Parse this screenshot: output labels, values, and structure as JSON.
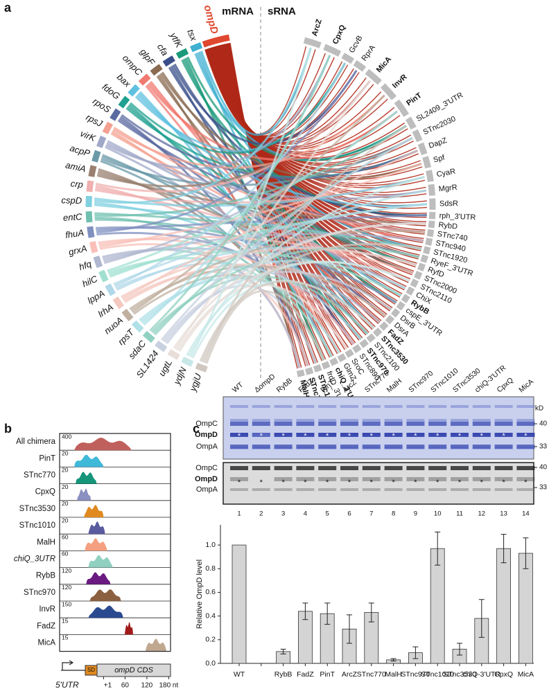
{
  "panel_labels": {
    "a": "a",
    "b": "b",
    "c": "c"
  },
  "chord": {
    "left_title": "mRNA",
    "right_title": "sRNA",
    "mrnas": [
      {
        "label": "ompD",
        "color": "#e0472f"
      },
      {
        "label": "tsx",
        "color": "#40b0d0"
      },
      {
        "label": "ytfK",
        "color": "#1a9a7a"
      },
      {
        "label": "cfa",
        "color": "#3a4f8a"
      },
      {
        "label": "glpF",
        "color": "#8a6a50"
      },
      {
        "label": "ompC",
        "color": "#f07a70"
      },
      {
        "label": "bax",
        "color": "#60c0e0"
      },
      {
        "label": "fdoG",
        "color": "#20a090"
      },
      {
        "label": "rpoS",
        "color": "#5a6aa0"
      },
      {
        "label": "rpsJ",
        "color": "#f4a090"
      },
      {
        "label": "virK",
        "color": "#a0a8c8"
      },
      {
        "label": "acpP",
        "color": "#6a9aa8"
      },
      {
        "label": "amiA",
        "color": "#9a8070"
      },
      {
        "label": "crp",
        "color": "#f0b0b0"
      },
      {
        "label": "cspD",
        "color": "#80d0e0"
      },
      {
        "label": "entC",
        "color": "#70c0b0"
      },
      {
        "label": "fhuA",
        "color": "#8090c0"
      },
      {
        "label": "grxA",
        "color": "#f8c0b8"
      },
      {
        "label": "hfq",
        "color": "#b0b8d0"
      },
      {
        "label": "hilC",
        "color": "#a0e0d0"
      },
      {
        "label": "lppA",
        "color": "#b0d8e8"
      },
      {
        "label": "lrhA",
        "color": "#f4c8c0"
      },
      {
        "label": "nuoA",
        "color": "#c0b0a0"
      },
      {
        "label": "rpsT",
        "color": "#b0e0e8"
      },
      {
        "label": "sdaC",
        "color": "#90d0c0"
      },
      {
        "label": "SL1424",
        "color": "#c8d0e0"
      },
      {
        "label": "ugtL",
        "color": "#e8ddd8"
      },
      {
        "label": "ydjN",
        "color": "#c8e8e8"
      },
      {
        "label": "ygjU",
        "color": "#d0c8c0"
      }
    ],
    "srnas": [
      {
        "label": "ArcZ",
        "bold": true
      },
      {
        "label": "CpxQ",
        "bold": true
      },
      {
        "label": "GcvB",
        "bold": false
      },
      {
        "label": "RprA",
        "bold": false
      },
      {
        "label": "MicA",
        "bold": true
      },
      {
        "label": "InvR",
        "bold": true
      },
      {
        "label": "PinT",
        "bold": true
      },
      {
        "label": "SL2409_3'UTR",
        "bold": false
      },
      {
        "label": "STnc2030",
        "bold": false
      },
      {
        "label": "DapZ",
        "bold": false
      },
      {
        "label": "Spf",
        "bold": false
      },
      {
        "label": "CyaR",
        "bold": false
      },
      {
        "label": "MgrR",
        "bold": false
      },
      {
        "label": "SdsR",
        "bold": false
      },
      {
        "label": "rph_3'UTR",
        "bold": false
      },
      {
        "label": "RybD",
        "bold": false
      },
      {
        "label": "STnc740",
        "bold": false
      },
      {
        "label": "STnc940",
        "bold": false
      },
      {
        "label": "STnc1920",
        "bold": false
      },
      {
        "label": "RyeF_3'UTR",
        "bold": false
      },
      {
        "label": "RyfD",
        "bold": false
      },
      {
        "label": "STnc2000",
        "bold": false
      },
      {
        "label": "STnc2110",
        "bold": false
      },
      {
        "label": "ChiX",
        "bold": false
      },
      {
        "label": "RybB",
        "bold": true
      },
      {
        "label": "cspE_3'UTR",
        "bold": false
      },
      {
        "label": "DsrB",
        "bold": false
      },
      {
        "label": "DsrA",
        "bold": false
      },
      {
        "label": "FadZ",
        "bold": true
      },
      {
        "label": "STnc3530",
        "bold": true
      },
      {
        "label": "STnc2100",
        "bold": false
      },
      {
        "label": "STnc970",
        "bold": true
      },
      {
        "label": "STnc890",
        "bold": false
      },
      {
        "label": "SroC",
        "bold": false
      },
      {
        "label": "GlmZ",
        "bold": false
      },
      {
        "label": "chiQ_3'UTR",
        "bold": true
      },
      {
        "label": "frdD_3'UTR",
        "bold": false
      },
      {
        "label": "STnc1010",
        "bold": true
      },
      {
        "label": "STnc770",
        "bold": true
      },
      {
        "label": "MalH",
        "bold": true
      }
    ]
  },
  "coverage": {
    "xlim": [
      -120,
      185
    ],
    "ticks": [
      {
        "value": 1,
        "label": "+1"
      },
      60,
      120,
      {
        "value": 180,
        "label": "180 nt"
      }
    ],
    "utr_label": "5'UTR",
    "sd_label": "SD",
    "cds_label": "ompD CDS",
    "tracks": [
      {
        "name": "All chimera",
        "max": 400,
        "color": "#c0605c",
        "span": [
          -80,
          78
        ]
      },
      {
        "name": "PinT",
        "max": 20,
        "color": "#40b8d8",
        "span": [
          -80,
          1
        ]
      },
      {
        "name": "STnc770",
        "max": 20,
        "color": "#15957a",
        "span": [
          -76,
          -18
        ]
      },
      {
        "name": "CpxQ",
        "max": 20,
        "color": "#8a90c0",
        "span": [
          -72,
          -34
        ]
      },
      {
        "name": "STnc3530",
        "max": 20,
        "color": "#e08a20",
        "span": [
          -53,
          1
        ]
      },
      {
        "name": "STnc1010",
        "max": 20,
        "color": "#5a5aa0",
        "span": [
          -41,
          5
        ]
      },
      {
        "name": "MalH",
        "max": 60,
        "color": "#f4a080",
        "span": [
          -51,
          11
        ]
      },
      {
        "name": "chiQ_3UTR",
        "max": 60,
        "color": "#90d0c0",
        "span": [
          -41,
          26
        ],
        "italic": true
      },
      {
        "name": "RybB",
        "max": 120,
        "color": "#6a1a80",
        "span": [
          -47,
          20
        ]
      },
      {
        "name": "STnc970",
        "max": 120,
        "color": "#8a6040",
        "span": [
          -37,
          49
        ]
      },
      {
        "name": "InvR",
        "max": 150,
        "color": "#2a4a90",
        "span": [
          -41,
          55
        ]
      },
      {
        "name": "FadZ",
        "max": 15,
        "color": "#a01a1a",
        "span": [
          59,
          82
        ]
      },
      {
        "name": "MicA",
        "max": 15,
        "color": "#c0a890",
        "span": [
          116,
          174
        ]
      }
    ]
  },
  "gel": {
    "lanes": [
      "WT",
      "ΔompD",
      "RybB",
      "FadZ",
      "PinT",
      "ArcZ",
      "STnc770",
      "MalH",
      "STnc970",
      "STnc1010",
      "STnc3530",
      "chiQ-3'UTR",
      "CpxQ",
      "MicA"
    ],
    "lane_numbers": [
      1,
      2,
      3,
      4,
      5,
      6,
      7,
      8,
      9,
      10,
      11,
      12,
      13,
      14
    ],
    "bands": [
      "OmpC",
      "OmpD",
      "OmpA"
    ],
    "kd_label": "kD",
    "markers": [
      40,
      33
    ],
    "star": "*"
  },
  "chart_data": {
    "type": "bar",
    "categories": [
      "WT",
      null,
      "RybB",
      "FadZ",
      "PinT",
      "ArcZ",
      "STnc770",
      "MalH",
      "STnc970",
      "STnc1010",
      "STnc3530",
      "chiQ-3'UTR",
      "CpxQ",
      "MicA"
    ],
    "values": [
      1.0,
      null,
      0.1,
      0.44,
      0.42,
      0.29,
      0.43,
      0.03,
      0.09,
      0.97,
      0.12,
      0.38,
      0.97,
      0.93
    ],
    "errors": [
      0.0,
      null,
      0.02,
      0.07,
      0.09,
      0.12,
      0.08,
      0.01,
      0.05,
      0.14,
      0.05,
      0.16,
      0.12,
      0.13
    ],
    "color": "#d4d4d4",
    "ylabel": "Relative OmpD level",
    "ylim": [
      0,
      1.17
    ],
    "yticks": [
      {
        "value": 0,
        "label": "0.0"
      },
      0.2,
      0.4,
      0.6,
      0.8,
      {
        "value": 1,
        "label": "1.0"
      }
    ]
  }
}
